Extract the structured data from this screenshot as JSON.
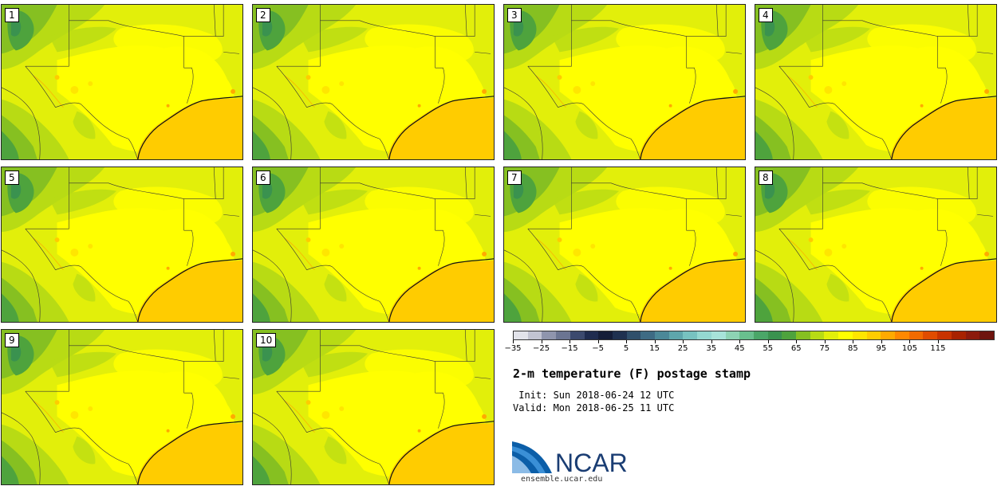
{
  "panels": [
    {
      "label": "1"
    },
    {
      "label": "2"
    },
    {
      "label": "3"
    },
    {
      "label": "4"
    },
    {
      "label": "5"
    },
    {
      "label": "6"
    },
    {
      "label": "7"
    },
    {
      "label": "8"
    },
    {
      "label": "9"
    },
    {
      "label": "10"
    }
  ],
  "colorbar": {
    "colors": [
      "#e2e3ea",
      "#c2c4d2",
      "#8f95ad",
      "#6b7592",
      "#3c4a6e",
      "#1f2c4f",
      "#141d38",
      "#1f3150",
      "#2f4f6b",
      "#3e6b84",
      "#4c8898",
      "#5ea6ac",
      "#77c2c0",
      "#94d8d1",
      "#a7e3d9",
      "#8dd3b4",
      "#69bf8e",
      "#4aa668",
      "#3a924f",
      "#4ea33d",
      "#86c021",
      "#b8db14",
      "#e2ef0a",
      "#ffff00",
      "#ffe600",
      "#ffcc00",
      "#ffaa00",
      "#ff8800",
      "#f26a00",
      "#e04c00",
      "#c83300",
      "#a82200",
      "#8c1a0c",
      "#6e140e"
    ],
    "tick_labels": [
      "-35",
      "-25",
      "-15",
      "-5",
      "5",
      "15",
      "25",
      "35",
      "45",
      "55",
      "65",
      "75",
      "85",
      "95",
      "105",
      "115"
    ]
  },
  "title": "2-m temperature (F) postage stamp",
  "init": " Init: Sun 2018-06-24 12 UTC",
  "valid": "Valid: Mon 2018-06-25 11 UTC",
  "logo_text": "NCAR",
  "website": "ensemble.ucar.edu"
}
